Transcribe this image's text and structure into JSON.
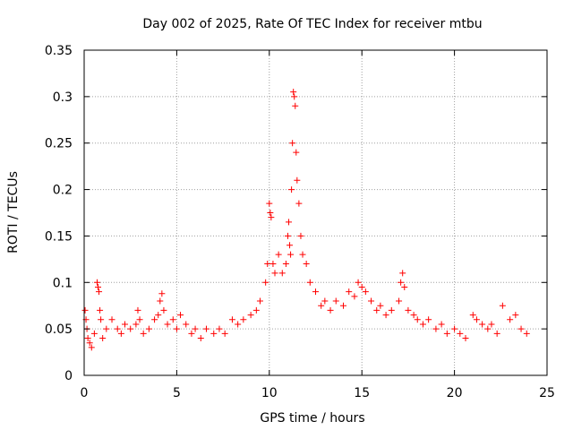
{
  "chart_data": {
    "type": "scatter",
    "title": "Day 002 of 2025, Rate Of TEC Index for receiver mtbu",
    "xlabel": "GPS time / hours",
    "ylabel": "ROTI / TECUs",
    "xlim": [
      0,
      25
    ],
    "ylim": [
      0,
      0.35
    ],
    "xticks": [
      0,
      5,
      10,
      15,
      20,
      25
    ],
    "xtick_labels": [
      "0",
      "5",
      "10",
      "15",
      "20",
      "25"
    ],
    "yticks": [
      0,
      0.05,
      0.1,
      0.15,
      0.2,
      0.25,
      0.3,
      0.35
    ],
    "ytick_labels": [
      "0",
      "0.05",
      "0.1",
      "0.15",
      "0.2",
      "0.25",
      "0.3",
      "0.35"
    ],
    "grid": true,
    "marker": "+",
    "series_color": "#ff0000",
    "series": [
      {
        "x": [
          0.05,
          0.1,
          0.15,
          0.2,
          0.3,
          0.4,
          0.55,
          0.7,
          0.75,
          0.8,
          0.85,
          0.9,
          1.0,
          1.2,
          1.5,
          1.8,
          2.0,
          2.2,
          2.5,
          2.8,
          2.9,
          3.0,
          3.2,
          3.5,
          3.8,
          4.0,
          4.1,
          4.2,
          4.3,
          4.5,
          4.8,
          5.0,
          5.2,
          5.5,
          5.8,
          6.0,
          6.3,
          6.6,
          7.0,
          7.3,
          7.6,
          8.0,
          8.3,
          8.6,
          9.0,
          9.3,
          9.5,
          9.8,
          9.9,
          10.0,
          10.05,
          10.1,
          10.2,
          10.3,
          10.5,
          10.7,
          10.9,
          11.0,
          11.05,
          11.1,
          11.15,
          11.2,
          11.25,
          11.3,
          11.35,
          11.4,
          11.45,
          11.5,
          11.6,
          11.7,
          11.8,
          12.0,
          12.2,
          12.5,
          12.8,
          13.0,
          13.3,
          13.6,
          14.0,
          14.3,
          14.6,
          14.8,
          15.0,
          15.2,
          15.5,
          15.8,
          16.0,
          16.3,
          16.6,
          17.0,
          17.1,
          17.2,
          17.3,
          17.5,
          17.8,
          18.0,
          18.3,
          18.6,
          19.0,
          19.3,
          19.6,
          20.0,
          20.3,
          20.6,
          21.0,
          21.2,
          21.5,
          21.8,
          22.0,
          22.3,
          22.6,
          23.0,
          23.3,
          23.6,
          23.9
        ],
        "y": [
          0.07,
          0.06,
          0.05,
          0.04,
          0.035,
          0.03,
          0.045,
          0.1,
          0.095,
          0.09,
          0.07,
          0.06,
          0.04,
          0.05,
          0.06,
          0.05,
          0.045,
          0.055,
          0.05,
          0.055,
          0.07,
          0.06,
          0.045,
          0.05,
          0.06,
          0.065,
          0.08,
          0.088,
          0.07,
          0.055,
          0.06,
          0.05,
          0.065,
          0.055,
          0.045,
          0.05,
          0.04,
          0.05,
          0.045,
          0.05,
          0.045,
          0.06,
          0.055,
          0.06,
          0.065,
          0.07,
          0.08,
          0.1,
          0.12,
          0.185,
          0.175,
          0.17,
          0.12,
          0.11,
          0.13,
          0.11,
          0.12,
          0.15,
          0.165,
          0.14,
          0.13,
          0.2,
          0.25,
          0.305,
          0.3,
          0.29,
          0.24,
          0.21,
          0.185,
          0.15,
          0.13,
          0.12,
          0.1,
          0.09,
          0.075,
          0.08,
          0.07,
          0.08,
          0.075,
          0.09,
          0.085,
          0.1,
          0.095,
          0.09,
          0.08,
          0.07,
          0.075,
          0.065,
          0.07,
          0.08,
          0.1,
          0.11,
          0.095,
          0.07,
          0.065,
          0.06,
          0.055,
          0.06,
          0.05,
          0.055,
          0.045,
          0.05,
          0.045,
          0.04,
          0.065,
          0.06,
          0.055,
          0.05,
          0.055,
          0.045,
          0.075,
          0.06,
          0.065,
          0.05,
          0.045
        ]
      }
    ]
  }
}
